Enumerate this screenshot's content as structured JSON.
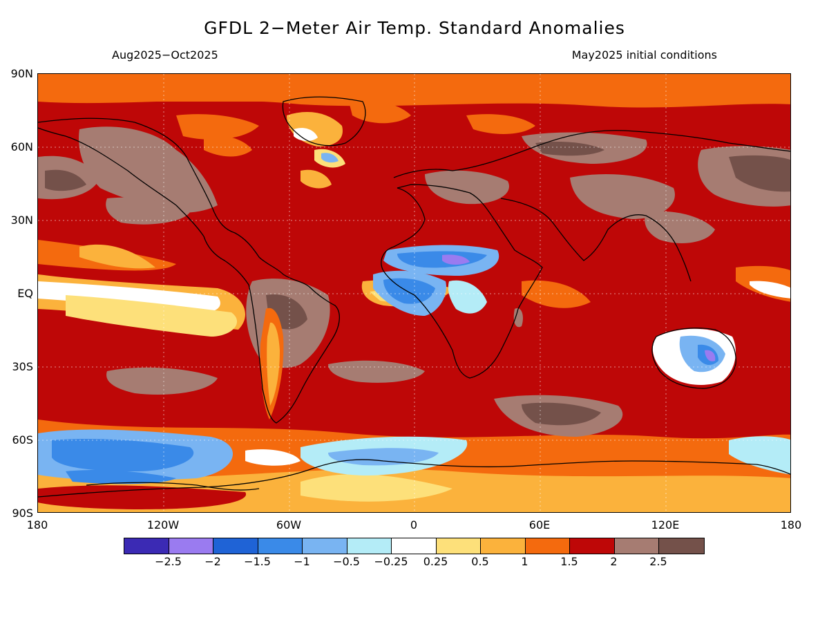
{
  "title": "GFDL 2−Meter Air Temp. Standard Anomalies",
  "period": "Aug2025−Oct2025",
  "init": "May2025 initial conditions",
  "lat_labels": [
    "90N",
    "60N",
    "30N",
    "EQ",
    "30S",
    "60S",
    "90S"
  ],
  "lon_labels": [
    "180",
    "120W",
    "60W",
    "0",
    "60E",
    "120E",
    "180"
  ],
  "colorbar": {
    "colors": [
      "#3b2ab4",
      "#9a7bf0",
      "#1f63d6",
      "#3a8ae8",
      "#79b4f2",
      "#b4ecf7",
      "#ffffff",
      "#fde07a",
      "#fbb23c",
      "#f46a0e",
      "#be0707",
      "#a67c72",
      "#74514a"
    ],
    "labels": [
      "−2.5",
      "−2",
      "−1.5",
      "−1",
      "−0.5",
      "−0.25",
      "0.25",
      "0.5",
      "1",
      "1.5",
      "2",
      "2.5"
    ]
  },
  "map": {
    "background_color": "#be0707",
    "grid": true
  }
}
